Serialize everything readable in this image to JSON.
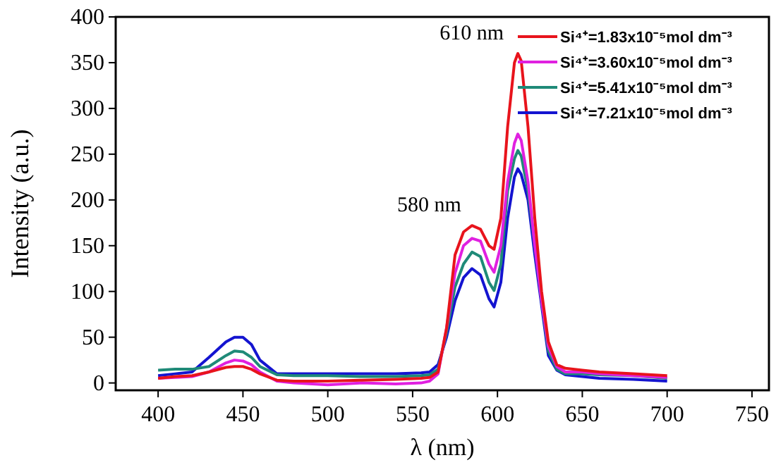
{
  "chart_data": {
    "type": "line",
    "xlabel": "λ (nm)",
    "ylabel": "Intensity (a.u.)",
    "x": [
      400,
      410,
      420,
      430,
      440,
      445,
      450,
      455,
      460,
      470,
      480,
      500,
      520,
      540,
      555,
      560,
      565,
      570,
      575,
      580,
      585,
      590,
      595,
      598,
      602,
      606,
      610,
      612,
      614,
      618,
      622,
      626,
      630,
      635,
      640,
      650,
      660,
      680,
      700
    ],
    "series": [
      {
        "name": "Si⁴⁺=1.83x10⁻⁵mol dm⁻³",
        "color": "#e8141c",
        "values": [
          5,
          7,
          8,
          12,
          17,
          18,
          18,
          15,
          10,
          3,
          2,
          2,
          3,
          4,
          5,
          6,
          12,
          60,
          140,
          165,
          172,
          168,
          150,
          146,
          180,
          280,
          350,
          360,
          352,
          280,
          180,
          100,
          45,
          20,
          16,
          14,
          12,
          10,
          8
        ]
      },
      {
        "name": "Si⁴⁺=3.60x10⁻⁵mol dm⁻³",
        "color": "#e020e0",
        "values": [
          5,
          6,
          7,
          12,
          22,
          25,
          24,
          20,
          12,
          2,
          0,
          -2,
          0,
          -1,
          0,
          2,
          10,
          60,
          120,
          150,
          158,
          155,
          130,
          121,
          150,
          220,
          262,
          272,
          265,
          220,
          150,
          90,
          40,
          18,
          12,
          12,
          10,
          8,
          6
        ]
      },
      {
        "name": "Si⁴⁺=5.41x10⁻⁵mol dm⁻³",
        "color": "#1f8a78",
        "values": [
          14,
          15,
          15,
          18,
          30,
          35,
          34,
          28,
          18,
          9,
          8,
          8,
          7,
          7,
          8,
          9,
          15,
          55,
          105,
          130,
          143,
          138,
          110,
          101,
          130,
          210,
          245,
          254,
          248,
          210,
          150,
          90,
          35,
          15,
          10,
          10,
          9,
          8,
          5
        ]
      },
      {
        "name": "Si⁴⁺=7.21x10⁻⁵mol dm⁻³",
        "color": "#1414d0",
        "values": [
          8,
          10,
          12,
          28,
          45,
          50,
          50,
          42,
          25,
          10,
          10,
          10,
          10,
          10,
          11,
          12,
          20,
          50,
          90,
          115,
          125,
          118,
          92,
          83,
          110,
          180,
          225,
          234,
          228,
          200,
          140,
          85,
          30,
          14,
          9,
          7,
          5,
          4,
          2
        ]
      }
    ],
    "annotations": [
      {
        "text": "580 nm",
        "x": 587,
        "y": 172
      },
      {
        "text": "610 nm",
        "x": 612,
        "y": 360
      }
    ],
    "xlim": [
      375,
      760
    ],
    "ylim": [
      -8,
      400
    ],
    "xticks": [
      400,
      450,
      500,
      550,
      600,
      650,
      700,
      750
    ],
    "yticks": [
      0,
      50,
      100,
      150,
      200,
      250,
      300,
      350,
      400
    ],
    "legend": "top right",
    "grid": false,
    "line_style": "solid"
  }
}
